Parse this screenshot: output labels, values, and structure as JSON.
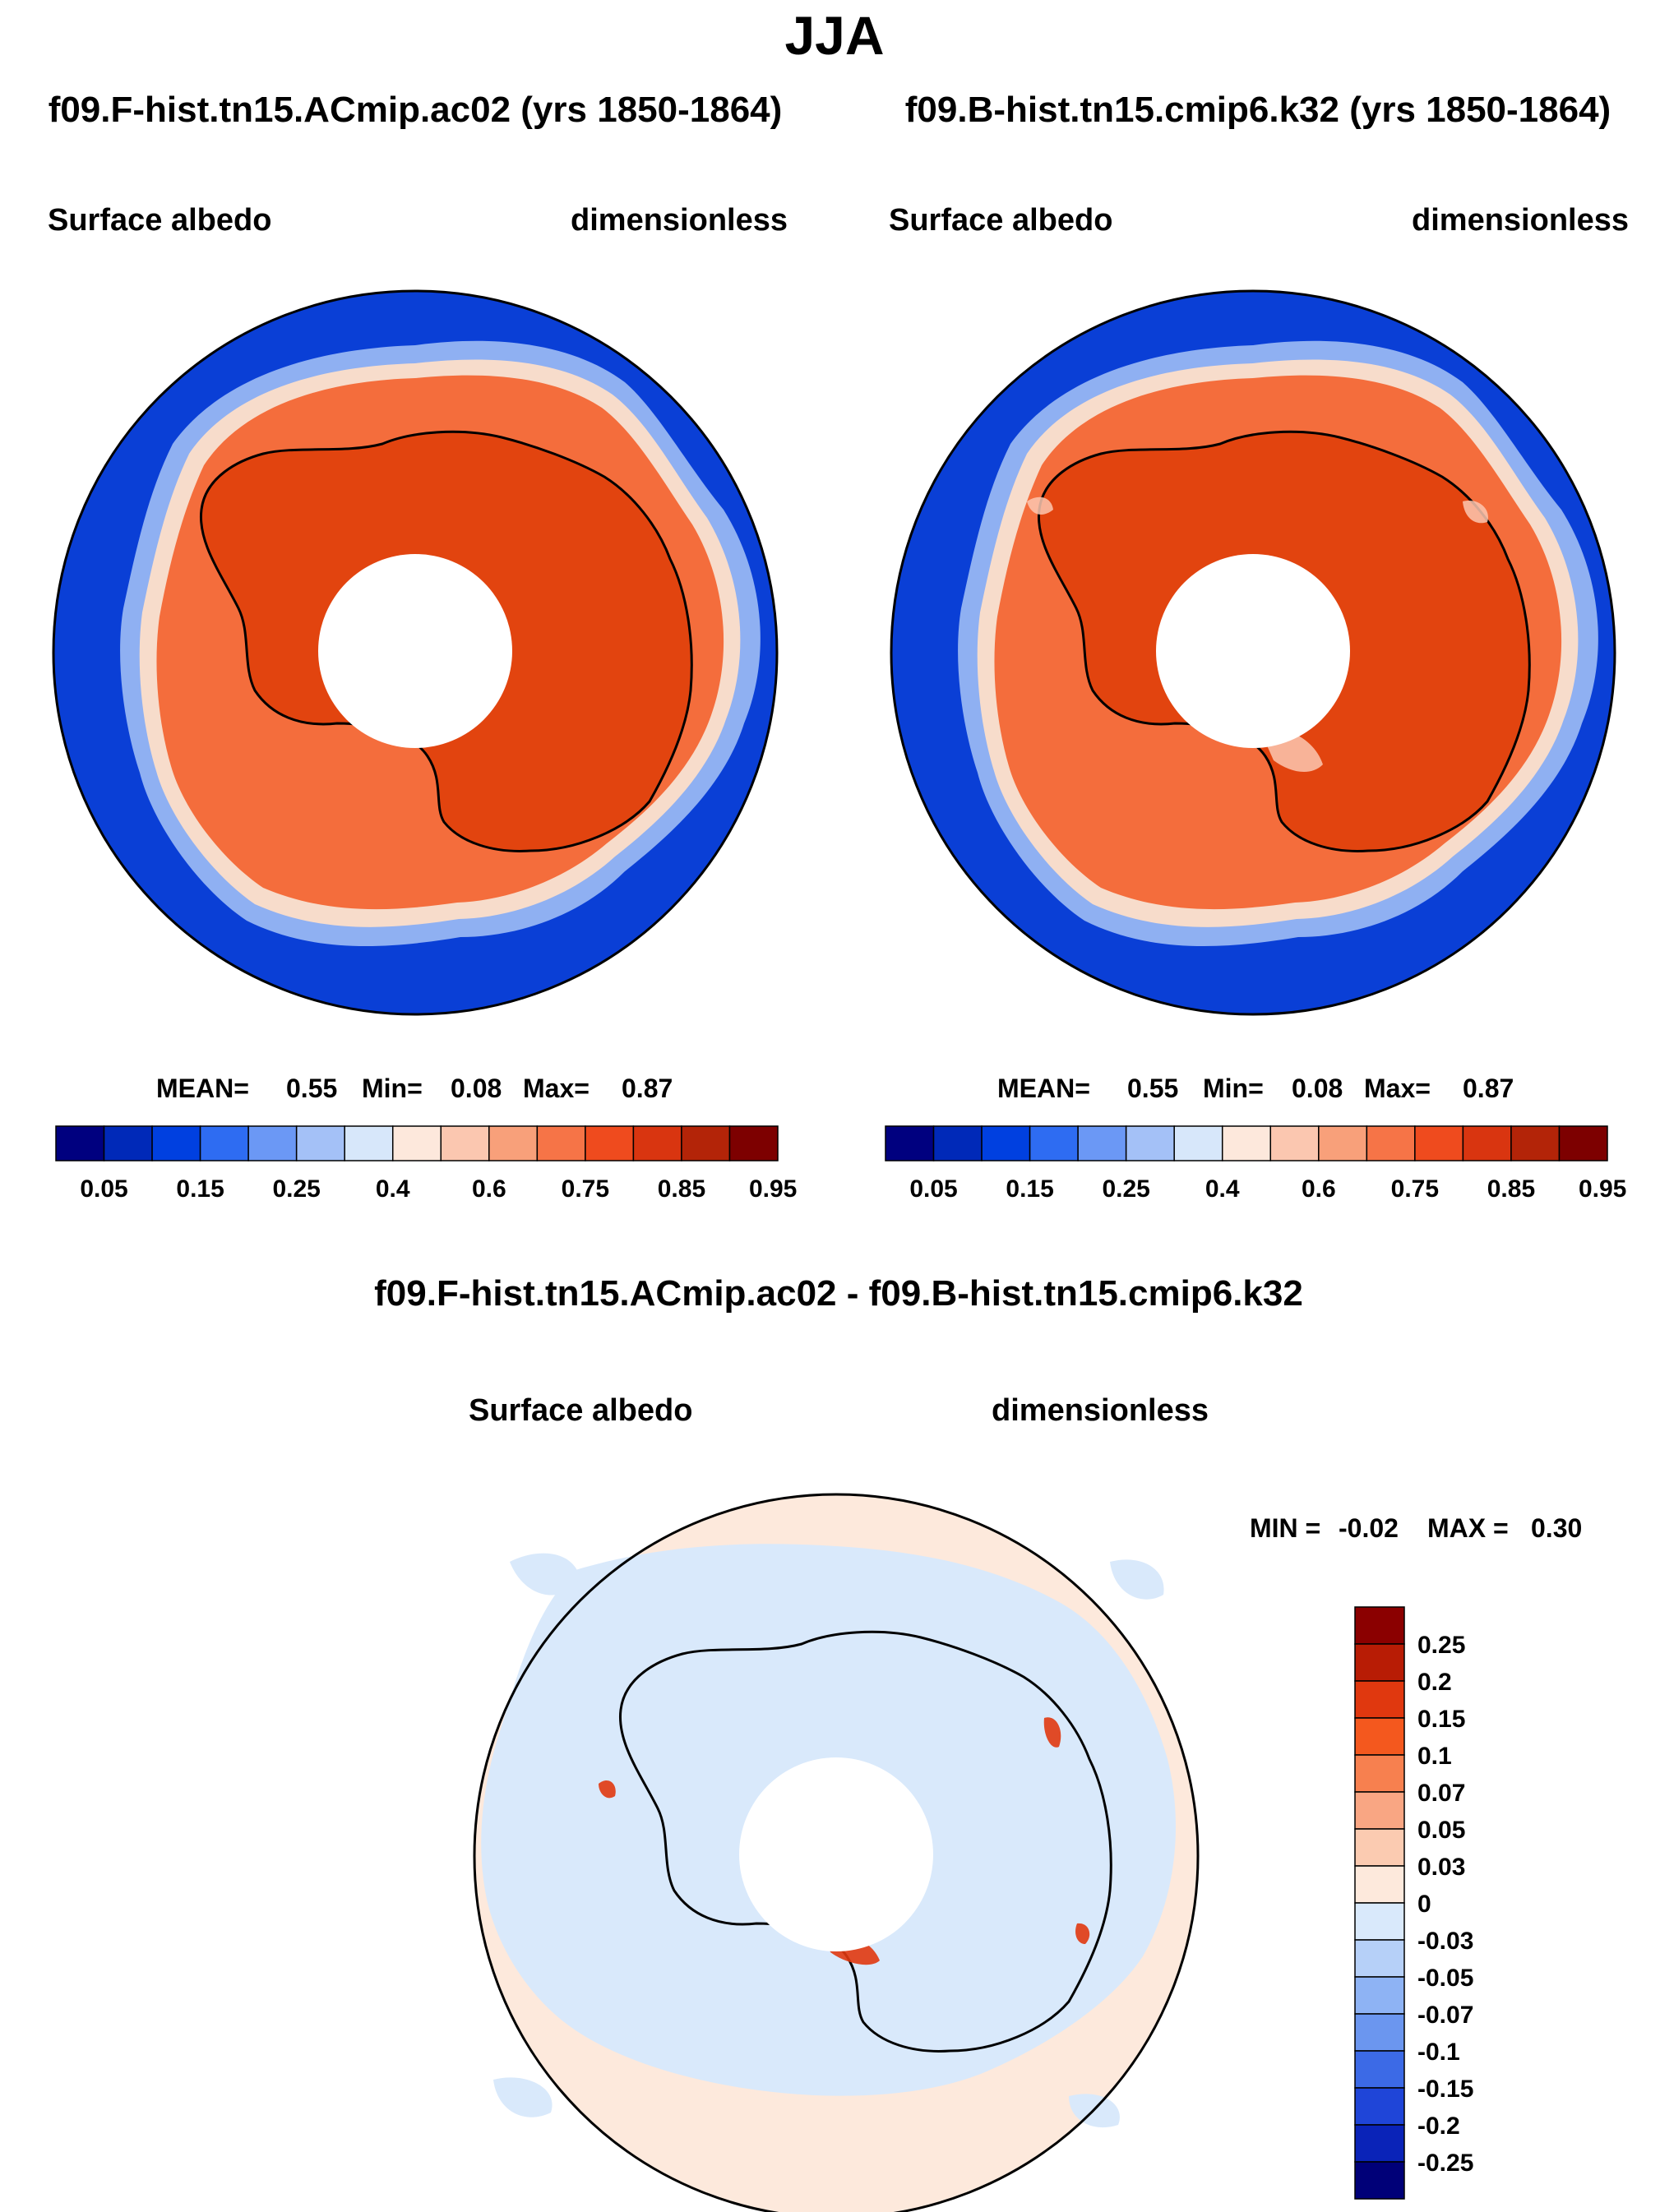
{
  "page": {
    "season_title": "JJA",
    "left_case_title": "f09.F-hist.tn15.ACmip.ac02 (yrs 1850-1864)",
    "right_case_title": "f09.B-hist.tn15.cmip6.k32 (yrs 1850-1864)",
    "diff_title": "f09.F-hist.tn15.ACmip.ac02 - f09.B-hist.tn15.cmip6.k32"
  },
  "colors": {
    "land_outline": "#000000",
    "background": "#ffffff"
  },
  "chart_data": [
    {
      "type": "heatmap",
      "projection": "south-polar-stereographic",
      "variable": "Surface albedo",
      "units": "dimensionless",
      "case": "f09.F-hist.tn15.ACmip.ac02 (yrs 1850-1864)",
      "stats": {
        "mean_label": "MEAN=",
        "mean": "0.55",
        "min_label": "Min=",
        "min": "0.08",
        "max_label": "Max=",
        "max": "0.87"
      },
      "colorbar": {
        "orientation": "horizontal",
        "colors": [
          "#00007f",
          "#0029b8",
          "#0040e0",
          "#2e6cf2",
          "#6b98f5",
          "#a4c1f7",
          "#d7e7fa",
          "#fde8dc",
          "#fbc7b0",
          "#f8a07a",
          "#f67447",
          "#ef4b1e",
          "#d93510",
          "#b32408",
          "#7d0000"
        ],
        "tick_labels": [
          "0.05",
          "0.15",
          "0.25",
          "0.4",
          "0.6",
          "0.75",
          "0.85",
          "0.95"
        ]
      }
    },
    {
      "type": "heatmap",
      "projection": "south-polar-stereographic",
      "variable": "Surface albedo",
      "units": "dimensionless",
      "case": "f09.B-hist.tn15.cmip6.k32 (yrs 1850-1864)",
      "stats": {
        "mean_label": "MEAN=",
        "mean": "0.55",
        "min_label": "Min=",
        "min": "0.08",
        "max_label": "Max=",
        "max": "0.87"
      },
      "colorbar": {
        "orientation": "horizontal",
        "colors": [
          "#00007f",
          "#0029b8",
          "#0040e0",
          "#2e6cf2",
          "#6b98f5",
          "#a4c1f7",
          "#d7e7fa",
          "#fde8dc",
          "#fbc7b0",
          "#f8a07a",
          "#f67447",
          "#ef4b1e",
          "#d93510",
          "#b32408",
          "#7d0000"
        ],
        "tick_labels": [
          "0.05",
          "0.15",
          "0.25",
          "0.4",
          "0.6",
          "0.75",
          "0.85",
          "0.95"
        ]
      }
    },
    {
      "type": "heatmap",
      "projection": "south-polar-stereographic",
      "variable": "Surface albedo",
      "units": "dimensionless",
      "case": "f09.F-hist.tn15.ACmip.ac02 - f09.B-hist.tn15.cmip6.k32",
      "stats": {
        "min_label": "MIN =",
        "min": "-0.02",
        "max_label": "MAX =",
        "max": "0.30"
      },
      "colorbar": {
        "orientation": "vertical",
        "colors": [
          "#8b0000",
          "#b81c05",
          "#e0380f",
          "#f4581e",
          "#f7804f",
          "#f9a683",
          "#fbcbb1",
          "#fde9dc",
          "#d9e9fb",
          "#b6d0f8",
          "#8eb3f4",
          "#6b96ef",
          "#3c6ae6",
          "#1f45d8",
          "#0a23b8",
          "#000078"
        ],
        "tick_labels": [
          "0.25",
          "0.2",
          "0.15",
          "0.1",
          "0.07",
          "0.05",
          "0.03",
          "0",
          "-0.03",
          "-0.05",
          "-0.07",
          "-0.1",
          "-0.15",
          "-0.2",
          "-0.25"
        ]
      }
    }
  ]
}
